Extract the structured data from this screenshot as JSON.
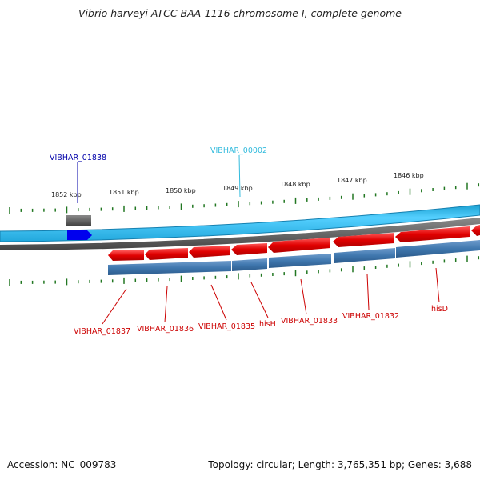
{
  "title": "Vibrio harveyi ATCC BAA-1116 chromosome I, complete genome",
  "footer": {
    "accession": "Accession: NC_009783",
    "topology": "Topology: circular; Length: 3,765,351 bp; Genes: 3,688"
  },
  "colors": {
    "background": "#ffffff",
    "cds_forward": "#e01010",
    "gene_track": "#3f77ae",
    "genome_band": "#2ab8e8",
    "highlight_gene": "#0000ee",
    "highlight_label_1": "#0000aa",
    "highlight_label_2": "#33bbdd",
    "gene_label": "#cc0000",
    "ticks": "#227722"
  },
  "scale": {
    "unit": "kbp",
    "labels": [
      "1852 kbp",
      "1851 kbp",
      "1850 kbp",
      "1849 kbp",
      "1848 kbp",
      "1847 kbp",
      "1846 kbp"
    ]
  },
  "features": {
    "highlighted": [
      {
        "name": "VIBHAR_01838",
        "color": "#0000aa"
      },
      {
        "name": "VIBHAR_00002",
        "color": "#33bbdd"
      }
    ],
    "genes": [
      "VIBHAR_01837",
      "VIBHAR_01836",
      "VIBHAR_01835",
      "hisH",
      "VIBHAR_01833",
      "VIBHAR_01832",
      "hisD"
    ]
  }
}
